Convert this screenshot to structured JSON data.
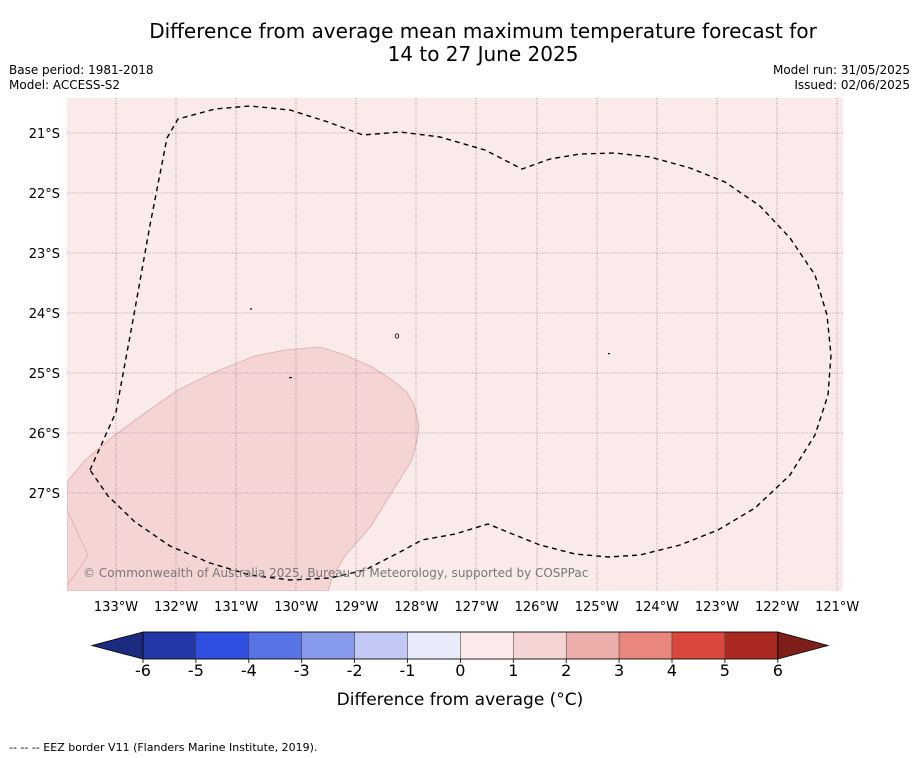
{
  "title_line1": "Difference from average mean maximum temperature forecast for",
  "title_line2": "14 to 27 June 2025",
  "base_period": "Base period: 1981-2018",
  "model": "Model: ACCESS-S2",
  "model_run": "Model run: 31/05/2025",
  "issued": "Issued: 02/06/2025",
  "credit": "© Commonwealth of Australia 2025, Bureau of Meteorology, supported by COSPPac",
  "footnote": "--  --  -- EEZ border V11 (Flanders Marine Institute, 2019).",
  "map": {
    "lon_labels": [
      "133°W",
      "132°W",
      "131°W",
      "130°W",
      "129°W",
      "128°W",
      "127°W",
      "126°W",
      "125°W",
      "124°W",
      "123°W",
      "122°W",
      "121°W"
    ],
    "lat_labels": [
      "21°S",
      "22°S",
      "23°S",
      "24°S",
      "25°S",
      "26°S",
      "27°S"
    ],
    "background_category": "0 to 1",
    "background_color": "#fbeaea",
    "warm_region_category": "1 to 2",
    "warm_region_color": "#f5d5d4"
  },
  "colorbar": {
    "label": "Difference from average (°C)",
    "ticks": [
      "-6",
      "-5",
      "-4",
      "-3",
      "-2",
      "-1",
      "0",
      "1",
      "2",
      "3",
      "4",
      "5",
      "6"
    ],
    "colors": [
      "#2338a6",
      "#2f4fe0",
      "#5873e3",
      "#8799ea",
      "#c1c9f4",
      "#e8ebfa",
      "#fbeaea",
      "#f5d5d4",
      "#ecaeaa",
      "#e8877e",
      "#d9473d",
      "#aa2a22"
    ],
    "under_color": "#1c2a80",
    "over_color": "#7e1f1a"
  }
}
